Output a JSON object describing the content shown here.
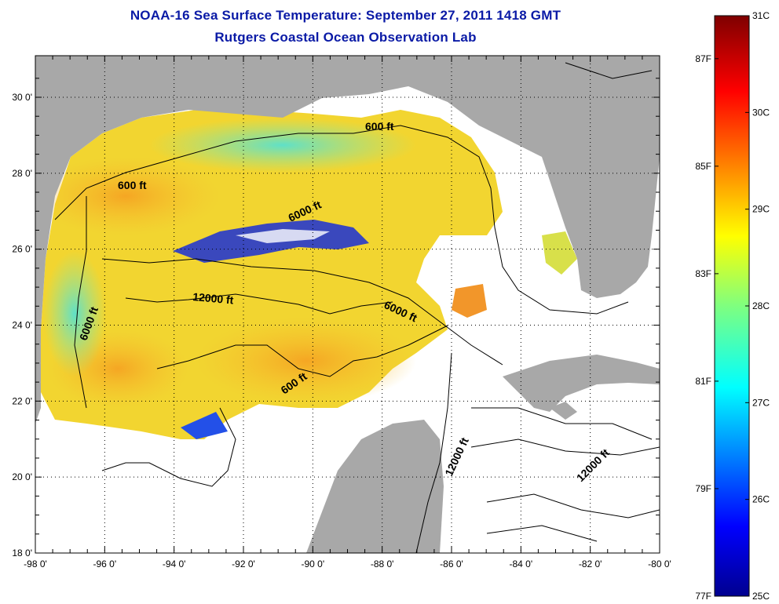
{
  "header": {
    "title": "NOAA-16 Sea Surface Temperature:  September 27, 2011 1418 GMT",
    "subtitle": "Rutgers Coastal Ocean Observation Lab"
  },
  "axes": {
    "lon_labels": [
      "-98 0'",
      "-96 0'",
      "-94 0'",
      "-92 0'",
      "-90 0'",
      "-88 0'",
      "-86 0'",
      "-84 0'",
      "-82 0'",
      "-80 0'"
    ],
    "lat_labels": [
      "30 0'",
      "28 0'",
      "26 0'",
      "24 0'",
      "22 0'",
      "20 0'",
      "18 0'"
    ]
  },
  "contours": [
    {
      "label": "600 ft"
    },
    {
      "label": "600 ft"
    },
    {
      "label": "6000 ft"
    },
    {
      "label": "12000 ft"
    },
    {
      "label": "6000 ft"
    },
    {
      "label": "6000 ft"
    },
    {
      "label": "600 ft"
    },
    {
      "label": "12000 ft"
    },
    {
      "label": "12000 ft"
    }
  ],
  "colorbar": {
    "celsius": [
      "31C",
      "30C",
      "29C",
      "28C",
      "27C",
      "26C",
      "25C"
    ],
    "fahrenheit": [
      "87F",
      "85F",
      "83F",
      "81F",
      "79F",
      "77F"
    ],
    "min_c": 25,
    "max_c": 31
  },
  "colors": {
    "title": "#0a1aa6",
    "land": "#a8a8a8",
    "cloud_nodata": "#ffffff"
  }
}
